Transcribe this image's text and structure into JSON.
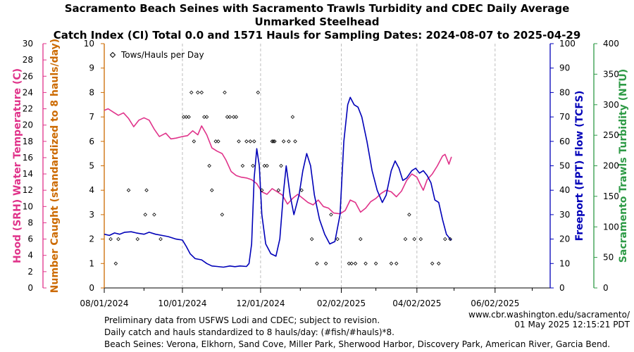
{
  "header": {
    "title_line1": "Sacramento Beach Seines with Sacramento Trawls Turbidity and CDEC Daily Average",
    "title_line2": "Unmarked Steelhead",
    "title_line3": "Catch Index (CI) Total 0.0 and 1571 Hauls for Sampling Dates: 2024-08-07 to 2025-04-29"
  },
  "footer": {
    "line1": "Preliminary data from USFWS Lodi and CDEC; subject to revision.",
    "line2": "Daily catch and hauls standardized to 8 hauls/day: (#fish/#hauls)*8.",
    "line3": "Beach Seines: Verona, Elkhorn, Sand Cove, Miller Park, Sherwood Harbor, Discovery Park, American River, Garcia Bend.",
    "credit_url": "www.cbr.washington.edu/sacramento/",
    "credit_time": "01 May 2025 12:15:21 PDT"
  },
  "colors": {
    "temperature": "#e0338a",
    "catch_axis": "#cc6a00",
    "flow": "#0000b8",
    "turbidity": "#2e9a46",
    "grid": "#bdbdbd"
  },
  "chart_data": {
    "type": "line",
    "x_axis": {
      "range": [
        "2024-08-01",
        "2025-07-15"
      ],
      "ticks": [
        "08/01/2024",
        "10/01/2024",
        "12/01/2024",
        "02/02/2025",
        "04/02/2025",
        "06/02/2025"
      ],
      "minor_ticks": [
        "2024-09-01",
        "2024-11-01",
        "2025-01-01",
        "2025-03-01",
        "2025-05-01",
        "2025-07-01"
      ],
      "grid": true
    },
    "axes": {
      "temperature": {
        "label": "Hood (SRH) Water Temperature (C)",
        "range": [
          0,
          30
        ],
        "ticks": [
          0,
          2,
          4,
          6,
          8,
          10,
          12,
          14,
          16,
          18,
          20,
          22,
          24,
          26,
          28,
          30
        ]
      },
      "catch": {
        "label": "Number Caught (standardized to 8 hauls/day)",
        "range": [
          0,
          10
        ],
        "ticks": [
          0,
          1,
          2,
          3,
          4,
          5,
          6,
          7,
          8,
          9,
          10
        ]
      },
      "flow": {
        "label": "Freeport (FPT) Flow (TCFS)",
        "range": [
          0,
          100
        ],
        "ticks": [
          0,
          10,
          20,
          30,
          40,
          50,
          60,
          70,
          80,
          90,
          100
        ]
      },
      "turbidity": {
        "label": "Sacramento Trawls Turbidity (NTU)",
        "range": [
          0,
          400
        ],
        "ticks": [
          0,
          50,
          100,
          150,
          200,
          250,
          300,
          350,
          400
        ]
      }
    },
    "legend": {
      "position": "top-left",
      "entries": [
        {
          "label": "Tows/Hauls per Day",
          "marker": "diamond"
        }
      ]
    },
    "series": [
      {
        "name": "Hood (SRH) Water Temperature (C)",
        "axis": "temperature",
        "points": [
          [
            "2024-08-01",
            21.8
          ],
          [
            "2024-08-04",
            22.0
          ],
          [
            "2024-08-08",
            21.6
          ],
          [
            "2024-08-12",
            21.2
          ],
          [
            "2024-08-16",
            21.5
          ],
          [
            "2024-08-20",
            20.8
          ],
          [
            "2024-08-24",
            19.8
          ],
          [
            "2024-08-28",
            20.6
          ],
          [
            "2024-09-01",
            20.9
          ],
          [
            "2024-09-05",
            20.6
          ],
          [
            "2024-09-09",
            19.5
          ],
          [
            "2024-09-13",
            18.6
          ],
          [
            "2024-09-18",
            19.0
          ],
          [
            "2024-09-22",
            18.3
          ],
          [
            "2024-09-26",
            18.4
          ],
          [
            "2024-10-01",
            18.6
          ],
          [
            "2024-10-05",
            18.7
          ],
          [
            "2024-10-09",
            19.3
          ],
          [
            "2024-10-13",
            18.8
          ],
          [
            "2024-10-16",
            19.9
          ],
          [
            "2024-10-20",
            18.8
          ],
          [
            "2024-10-24",
            17.2
          ],
          [
            "2024-10-28",
            16.8
          ],
          [
            "2024-11-01",
            16.5
          ],
          [
            "2024-11-04",
            15.7
          ],
          [
            "2024-11-08",
            14.3
          ],
          [
            "2024-11-12",
            13.8
          ],
          [
            "2024-11-16",
            13.6
          ],
          [
            "2024-11-20",
            13.5
          ],
          [
            "2024-11-24",
            13.3
          ],
          [
            "2024-11-28",
            12.8
          ],
          [
            "2024-12-02",
            11.8
          ],
          [
            "2024-12-06",
            11.5
          ],
          [
            "2024-12-10",
            12.2
          ],
          [
            "2024-12-14",
            11.8
          ],
          [
            "2024-12-18",
            11.4
          ],
          [
            "2024-12-22",
            10.3
          ],
          [
            "2024-12-26",
            11.0
          ],
          [
            "2024-12-30",
            11.5
          ],
          [
            "2025-01-03",
            11.0
          ],
          [
            "2025-01-07",
            10.5
          ],
          [
            "2025-01-11",
            10.2
          ],
          [
            "2025-01-15",
            10.8
          ],
          [
            "2025-01-19",
            10.0
          ],
          [
            "2025-01-23",
            9.8
          ],
          [
            "2025-01-27",
            9.2
          ],
          [
            "2025-02-01",
            9.1
          ],
          [
            "2025-02-05",
            9.5
          ],
          [
            "2025-02-09",
            10.8
          ],
          [
            "2025-02-13",
            10.5
          ],
          [
            "2025-02-17",
            9.3
          ],
          [
            "2025-02-21",
            9.8
          ],
          [
            "2025-02-25",
            10.6
          ],
          [
            "2025-03-01",
            11.0
          ],
          [
            "2025-03-05",
            11.6
          ],
          [
            "2025-03-09",
            12.0
          ],
          [
            "2025-03-13",
            11.8
          ],
          [
            "2025-03-17",
            11.2
          ],
          [
            "2025-03-21",
            11.9
          ],
          [
            "2025-03-25",
            13.2
          ],
          [
            "2025-03-29",
            14.0
          ],
          [
            "2025-04-02",
            13.6
          ],
          [
            "2025-04-05",
            12.6
          ],
          [
            "2025-04-07",
            12.0
          ],
          [
            "2025-04-10",
            13.3
          ],
          [
            "2025-04-14",
            14.0
          ],
          [
            "2025-04-18",
            15.0
          ],
          [
            "2025-04-22",
            16.2
          ],
          [
            "2025-04-24",
            16.4
          ],
          [
            "2025-04-26",
            15.6
          ],
          [
            "2025-04-27",
            15.2
          ],
          [
            "2025-04-29",
            16.1
          ]
        ]
      },
      {
        "name": "Freeport (FPT) Flow (TCFS)",
        "axis": "flow",
        "points": [
          [
            "2024-08-01",
            22
          ],
          [
            "2024-08-05",
            21.5
          ],
          [
            "2024-08-09",
            22.5
          ],
          [
            "2024-08-13",
            22
          ],
          [
            "2024-08-17",
            22.8
          ],
          [
            "2024-08-22",
            23
          ],
          [
            "2024-08-26",
            22.5
          ],
          [
            "2024-09-01",
            22
          ],
          [
            "2024-09-05",
            22.8
          ],
          [
            "2024-09-10",
            22
          ],
          [
            "2024-09-15",
            21.5
          ],
          [
            "2024-09-20",
            21
          ],
          [
            "2024-09-26",
            20
          ],
          [
            "2024-10-01",
            19.6
          ],
          [
            "2024-10-04",
            17
          ],
          [
            "2024-10-07",
            14
          ],
          [
            "2024-10-11",
            12
          ],
          [
            "2024-10-16",
            11.5
          ],
          [
            "2024-10-20",
            10
          ],
          [
            "2024-10-24",
            9
          ],
          [
            "2024-10-28",
            8.8
          ],
          [
            "2024-11-02",
            8.5
          ],
          [
            "2024-11-07",
            9
          ],
          [
            "2024-11-11",
            8.7
          ],
          [
            "2024-11-15",
            9
          ],
          [
            "2024-11-20",
            8.8
          ],
          [
            "2024-11-22",
            10
          ],
          [
            "2024-11-24",
            18
          ],
          [
            "2024-11-26",
            45
          ],
          [
            "2024-11-28",
            57
          ],
          [
            "2024-11-30",
            50
          ],
          [
            "2024-12-02",
            30
          ],
          [
            "2024-12-05",
            18
          ],
          [
            "2024-12-09",
            14
          ],
          [
            "2024-12-13",
            13
          ],
          [
            "2024-12-16",
            20
          ],
          [
            "2024-12-19",
            40
          ],
          [
            "2024-12-21",
            50
          ],
          [
            "2024-12-24",
            38
          ],
          [
            "2024-12-27",
            30
          ],
          [
            "2024-12-31",
            38
          ],
          [
            "2025-01-03",
            48
          ],
          [
            "2025-01-06",
            55
          ],
          [
            "2025-01-09",
            50
          ],
          [
            "2025-01-12",
            38
          ],
          [
            "2025-01-16",
            28
          ],
          [
            "2025-01-20",
            22
          ],
          [
            "2025-01-24",
            18
          ],
          [
            "2025-01-28",
            19
          ],
          [
            "2025-02-01",
            30
          ],
          [
            "2025-02-04",
            60
          ],
          [
            "2025-02-07",
            75
          ],
          [
            "2025-02-09",
            78
          ],
          [
            "2025-02-12",
            75
          ],
          [
            "2025-02-15",
            74
          ],
          [
            "2025-02-18",
            70
          ],
          [
            "2025-02-22",
            60
          ],
          [
            "2025-02-26",
            48
          ],
          [
            "2025-03-02",
            40
          ],
          [
            "2025-03-06",
            35
          ],
          [
            "2025-03-09",
            38
          ],
          [
            "2025-03-13",
            48
          ],
          [
            "2025-03-16",
            52
          ],
          [
            "2025-03-19",
            49
          ],
          [
            "2025-03-22",
            44
          ],
          [
            "2025-03-25",
            45
          ],
          [
            "2025-03-29",
            48
          ],
          [
            "2025-04-01",
            49
          ],
          [
            "2025-04-04",
            47
          ],
          [
            "2025-04-07",
            48
          ],
          [
            "2025-04-10",
            46
          ],
          [
            "2025-04-13",
            43
          ],
          [
            "2025-04-16",
            36
          ],
          [
            "2025-04-19",
            35
          ],
          [
            "2025-04-22",
            28
          ],
          [
            "2025-04-25",
            22
          ],
          [
            "2025-04-28",
            20
          ],
          [
            "2025-04-29",
            19.5
          ]
        ]
      },
      {
        "name": "Tows/Hauls per Day",
        "axis": "catch",
        "marker": "diamond",
        "points": [
          [
            "2024-08-06",
            2
          ],
          [
            "2024-08-12",
            2
          ],
          [
            "2024-08-10",
            1
          ],
          [
            "2024-08-20",
            4
          ],
          [
            "2024-08-27",
            2
          ],
          [
            "2024-09-02",
            3
          ],
          [
            "2024-09-03",
            4
          ],
          [
            "2024-09-09",
            3
          ],
          [
            "2024-09-14",
            2
          ],
          [
            "2024-10-02",
            7
          ],
          [
            "2024-10-04",
            7
          ],
          [
            "2024-10-06",
            7
          ],
          [
            "2024-10-08",
            8
          ],
          [
            "2024-10-10",
            6
          ],
          [
            "2024-10-13",
            8
          ],
          [
            "2024-10-16",
            8
          ],
          [
            "2024-10-18",
            7
          ],
          [
            "2024-10-20",
            7
          ],
          [
            "2024-10-22",
            5
          ],
          [
            "2024-10-24",
            4
          ],
          [
            "2024-10-27",
            6
          ],
          [
            "2024-10-29",
            6
          ],
          [
            "2024-11-01",
            3
          ],
          [
            "2024-11-03",
            8
          ],
          [
            "2024-11-05",
            7
          ],
          [
            "2024-11-07",
            7
          ],
          [
            "2024-11-10",
            7
          ],
          [
            "2024-11-12",
            7
          ],
          [
            "2024-11-14",
            6
          ],
          [
            "2024-11-17",
            5
          ],
          [
            "2024-11-20",
            6
          ],
          [
            "2024-11-23",
            6
          ],
          [
            "2024-11-25",
            5
          ],
          [
            "2024-11-26",
            6
          ],
          [
            "2024-11-29",
            8
          ],
          [
            "2024-12-02",
            4
          ],
          [
            "2024-12-04",
            5
          ],
          [
            "2024-12-06",
            5
          ],
          [
            "2024-12-10",
            6
          ],
          [
            "2024-12-11",
            6
          ],
          [
            "2024-12-12",
            6
          ],
          [
            "2024-12-15",
            4
          ],
          [
            "2024-12-17",
            5
          ],
          [
            "2024-12-19",
            6
          ],
          [
            "2024-12-23",
            6
          ],
          [
            "2024-12-26",
            7
          ],
          [
            "2024-12-28",
            6
          ],
          [
            "2025-01-02",
            4
          ],
          [
            "2025-01-10",
            2
          ],
          [
            "2025-01-14",
            1
          ],
          [
            "2025-01-21",
            1
          ],
          [
            "2025-01-25",
            3
          ],
          [
            "2025-01-30",
            2
          ],
          [
            "2025-02-08",
            1
          ],
          [
            "2025-02-10",
            1
          ],
          [
            "2025-02-13",
            1
          ],
          [
            "2025-02-17",
            2
          ],
          [
            "2025-02-21",
            1
          ],
          [
            "2025-03-01",
            1
          ],
          [
            "2025-03-13",
            1
          ],
          [
            "2025-03-17",
            1
          ],
          [
            "2025-03-24",
            2
          ],
          [
            "2025-03-27",
            3
          ],
          [
            "2025-03-31",
            2
          ],
          [
            "2025-04-05",
            2
          ],
          [
            "2025-04-14",
            1
          ],
          [
            "2025-04-19",
            1
          ],
          [
            "2025-04-24",
            2
          ],
          [
            "2025-04-28",
            2
          ]
        ]
      }
    ]
  }
}
